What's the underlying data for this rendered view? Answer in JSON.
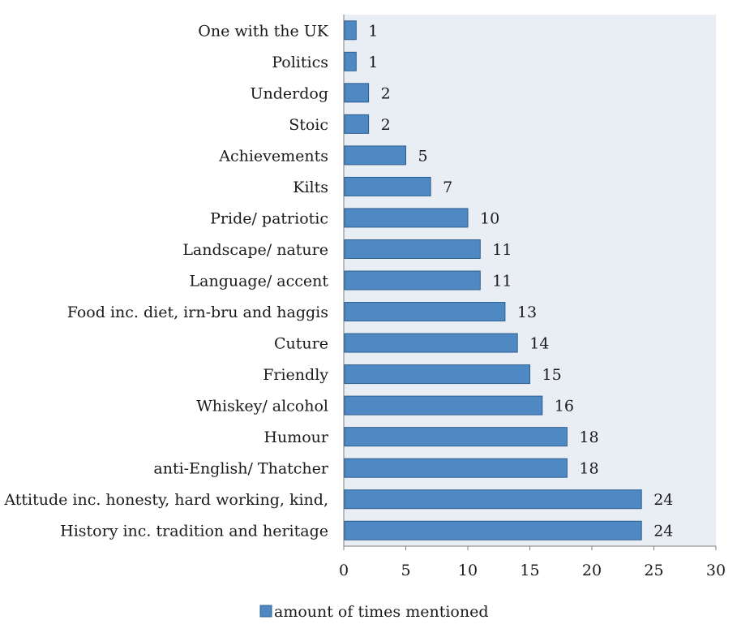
{
  "chart_data": {
    "type": "bar",
    "orientation": "horizontal",
    "categories": [
      "One with the UK",
      "Politics",
      "Underdog",
      "Stoic",
      "Achievements",
      "Kilts",
      "Pride/ patriotic",
      "Landscape/ nature",
      "Language/ accent",
      "Food inc. diet, irn-bru and haggis",
      "Cuture",
      "Friendly",
      "Whiskey/ alcohol",
      "Humour",
      "anti-English/ Thatcher",
      "Attitude inc. honesty, hard working, kind,",
      "History inc. tradition and heritage"
    ],
    "series": [
      {
        "name": "amount of times mentioned",
        "values": [
          1,
          1,
          2,
          2,
          5,
          7,
          10,
          11,
          11,
          13,
          14,
          15,
          16,
          18,
          18,
          24,
          24
        ]
      }
    ],
    "title": "",
    "xlabel": "",
    "ylabel": "",
    "xlim": [
      0,
      30
    ],
    "xticks": [
      0,
      5,
      10,
      15,
      20,
      25,
      30
    ],
    "grid": false,
    "legend": "bottom-center",
    "data_labels": true
  },
  "colors": {
    "bar_fill": "#4f89c3",
    "bar_stroke": "#2f5f8f",
    "plot_bg": "#e9eef5",
    "axis": "#7f7f7f"
  }
}
